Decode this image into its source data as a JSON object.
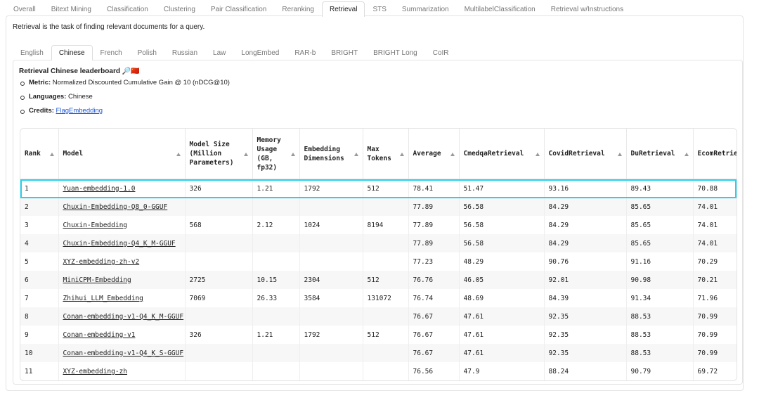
{
  "top_tabs": [
    "Overall",
    "Bitext Mining",
    "Classification",
    "Clustering",
    "Pair Classification",
    "Reranking",
    "Retrieval",
    "STS",
    "Summarization",
    "MultilabelClassification",
    "Retrieval w/Instructions"
  ],
  "description": "Retrieval is the task of finding relevant documents for a query.",
  "sub_tabs": [
    "English",
    "Chinese",
    "French",
    "Polish",
    "Russian",
    "Law",
    "LongEmbed",
    "RAR-b",
    "BRIGHT",
    "BRIGHT Long",
    "CoIR"
  ],
  "leaderboard": {
    "title": "Retrieval Chinese leaderboard 🔎🇨🇳",
    "bullets": [
      {
        "label": "Metric:",
        "text": "Normalized Discounted Cumulative Gain @ 10 (nDCG@10)"
      },
      {
        "label": "Languages:",
        "text": "Chinese"
      },
      {
        "label": "Credits:",
        "link": "FlagEmbedding"
      }
    ]
  },
  "table": {
    "columns": [
      "Rank",
      "Model",
      "Model Size (Million Parameters)",
      "Memory Usage (GB, fp32)",
      "Embedding Dimensions",
      "Max Tokens",
      "Average",
      "CmedqaRetrieval",
      "CovidRetrieval",
      "DuRetrieval",
      "EcomRetrieval"
    ],
    "rows": [
      [
        1,
        "Yuan-embedding-1.0",
        326,
        1.21,
        1792,
        512,
        78.41,
        51.47,
        93.16,
        89.43,
        70.88
      ],
      [
        2,
        "Chuxin-Embedding-Q8_0-GGUF",
        null,
        null,
        null,
        null,
        77.89,
        56.58,
        84.29,
        85.65,
        74.01
      ],
      [
        3,
        "Chuxin-Embedding",
        568,
        2.12,
        1024,
        8194,
        77.89,
        56.58,
        84.29,
        85.65,
        74.01
      ],
      [
        4,
        "Chuxin-Embedding-Q4_K_M-GGUF",
        null,
        null,
        null,
        null,
        77.89,
        56.58,
        84.29,
        85.65,
        74.01
      ],
      [
        5,
        "XYZ-embedding-zh-v2",
        null,
        null,
        null,
        null,
        77.23,
        48.29,
        90.76,
        91.16,
        70.29
      ],
      [
        6,
        "MiniCPM-Embedding",
        2725,
        10.15,
        2304,
        512,
        76.76,
        46.05,
        92.01,
        90.98,
        70.21
      ],
      [
        7,
        "Zhihui_LLM_Embedding",
        7069,
        26.33,
        3584,
        131072,
        76.74,
        48.69,
        84.39,
        91.34,
        71.96
      ],
      [
        8,
        "Conan-embedding-v1-Q4_K_M-GGUF",
        null,
        null,
        null,
        null,
        76.67,
        47.61,
        92.35,
        88.53,
        70.99
      ],
      [
        9,
        "Conan-embedding-v1",
        326,
        1.21,
        1792,
        512,
        76.67,
        47.61,
        92.35,
        88.53,
        70.99
      ],
      [
        10,
        "Conan-embedding-v1-Q4_K_S-GGUF",
        null,
        null,
        null,
        null,
        76.67,
        47.61,
        92.35,
        88.53,
        70.99
      ],
      [
        11,
        "XYZ-embedding-zh",
        null,
        null,
        null,
        null,
        76.56,
        47.9,
        88.24,
        90.79,
        69.72
      ]
    ]
  }
}
